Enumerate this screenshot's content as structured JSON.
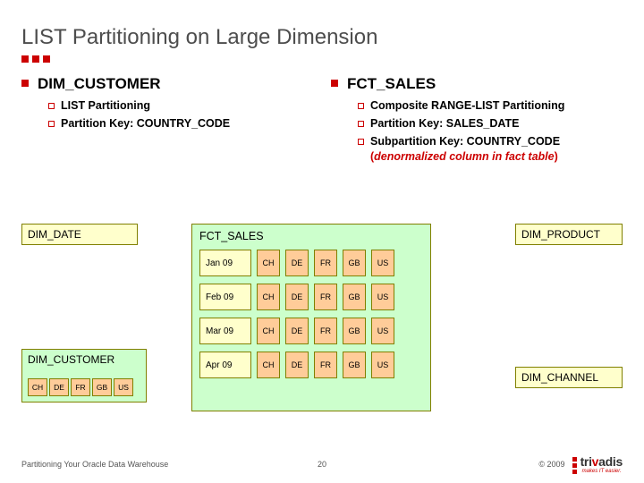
{
  "title": "LIST Partitioning on Large Dimension",
  "accent_color": "#cc0000",
  "left": {
    "heading": "DIM_CUSTOMER",
    "items": [
      "LIST Partitioning",
      "Partition Key: COUNTRY_CODE"
    ]
  },
  "right": {
    "heading": "FCT_SALES",
    "items": [
      "Composite RANGE-LIST Partitioning",
      "Partition Key: SALES_DATE",
      "Subpartition Key: COUNTRY_CODE"
    ],
    "emph_paren_open": "(",
    "emph_text": "denormalized column in fact table",
    "emph_paren_close": ")"
  },
  "diagram": {
    "dim_date_label": "DIM_DATE",
    "dim_product_label": "DIM_PRODUCT",
    "dim_channel_label": "DIM_CHANNEL",
    "dim_customer": {
      "label": "DIM_CUSTOMER",
      "country_codes": [
        "CH",
        "DE",
        "FR",
        "GB",
        "US"
      ]
    },
    "fct": {
      "label": "FCT_SALES",
      "months": [
        "Jan 09",
        "Feb 09",
        "Mar 09",
        "Apr 09"
      ],
      "country_codes": [
        "CH",
        "DE",
        "FR",
        "GB",
        "US"
      ]
    },
    "colors": {
      "dim_fill": "#ffffcc",
      "fact_fill": "#ccffcc",
      "sub_fill": "#ffcc99",
      "border": "#808000"
    }
  },
  "footer": {
    "left": "Partitioning Your Oracle Data Warehouse",
    "page": "20",
    "copyright": "© 2009",
    "brand_plain": "tri",
    "brand_red": "v",
    "brand_rest": "adis",
    "tagline": "makes IT easier."
  }
}
